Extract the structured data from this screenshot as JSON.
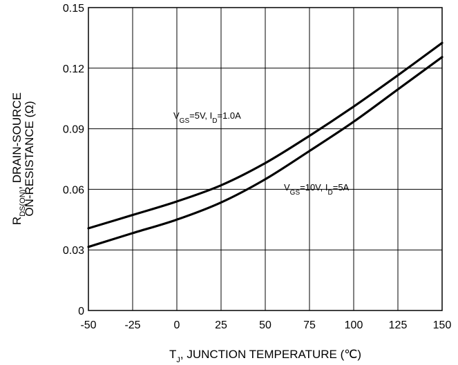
{
  "chart_data": {
    "type": "line",
    "xlabel": {
      "main": "T",
      "sub": "J",
      "rest": ", JUNCTION TEMPERATURE (℃)"
    },
    "ylabel": {
      "line1_main": "R",
      "line1_sub": "DS(ON)",
      "line1_rest": ", DRAIN-SOURCE",
      "line2": "ON-RESISTANCE (Ω)"
    },
    "xlim": [
      -50,
      150
    ],
    "ylim": [
      0,
      0.15
    ],
    "x_ticks": [
      "-50",
      "-25",
      "0",
      "25",
      "50",
      "75",
      "100",
      "125",
      "150"
    ],
    "y_ticks": [
      "0",
      "0.03",
      "0.06",
      "0.09",
      "0.12",
      "0.15"
    ],
    "grid": true,
    "series": [
      {
        "annotation": {
          "v": "V",
          "v_sub": "GS",
          "v_val": "=5V, I",
          "i_sub": "D",
          "i_val": "=1.0A"
        },
        "x": [
          -50,
          -25,
          0,
          25,
          50,
          75,
          100,
          125,
          150
        ],
        "y": [
          0.0407,
          0.0473,
          0.054,
          0.062,
          0.073,
          0.0865,
          0.101,
          0.1165,
          0.1325
        ]
      },
      {
        "annotation": {
          "v": "V",
          "v_sub": "GS",
          "v_val": "=10V, I",
          "i_sub": "D",
          "i_val": "=5A"
        },
        "x": [
          -50,
          -25,
          0,
          25,
          50,
          75,
          100,
          125,
          150
        ],
        "y": [
          0.0315,
          0.0383,
          0.045,
          0.0535,
          0.065,
          0.079,
          0.0935,
          0.1095,
          0.1255
        ]
      }
    ]
  }
}
